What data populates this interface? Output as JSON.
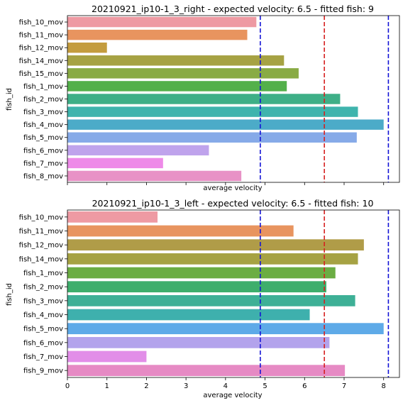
{
  "chart_data": [
    {
      "type": "bar",
      "orientation": "horizontal",
      "title": "20210921_ip10-1_3_right - expected velocity: 6.5 - fitted fish: 9",
      "xlabel": "average velocity",
      "ylabel": "fish_id",
      "xlim": [
        0,
        8.4
      ],
      "x_ticks": [
        0,
        1,
        2,
        3,
        4,
        5,
        6,
        7,
        8
      ],
      "show_x_tick_labels": false,
      "categories": [
        "fish_10_mov",
        "fish_11_mov",
        "fish_12_mov",
        "fish_14_mov",
        "fish_15_mov",
        "fish_1_mov",
        "fish_2_mov",
        "fish_3_mov",
        "fish_4_mov",
        "fish_5_mov",
        "fish_6_mov",
        "fish_7_mov",
        "fish_8_mov"
      ],
      "values": [
        4.78,
        4.55,
        1.0,
        5.48,
        5.85,
        5.55,
        6.9,
        7.35,
        8.0,
        7.32,
        3.58,
        2.42,
        4.4
      ],
      "colors": [
        "#ee9aa3",
        "#e8945f",
        "#c49c3e",
        "#a6a243",
        "#89ab44",
        "#53b04a",
        "#3eaf87",
        "#3eb4ad",
        "#4cabc8",
        "#86aae8",
        "#bfa3ec",
        "#ee8ae8",
        "#e892c6"
      ],
      "reference_lines": [
        {
          "x": 4.88,
          "color": "#1414d6",
          "style": "dashed"
        },
        {
          "x": 6.5,
          "color": "#d62020",
          "style": "dashed"
        },
        {
          "x": 8.12,
          "color": "#1414d6",
          "style": "dashed"
        }
      ]
    },
    {
      "type": "bar",
      "orientation": "horizontal",
      "title": "20210921_ip10-1_3_left - expected velocity: 6.5 - fitted fish: 10",
      "xlabel": "average velocity",
      "ylabel": "fish_id",
      "xlim": [
        0,
        8.4
      ],
      "x_ticks": [
        0,
        1,
        2,
        3,
        4,
        5,
        6,
        7,
        8
      ],
      "show_x_tick_labels": true,
      "categories": [
        "fish_10_mov",
        "fish_11_mov",
        "fish_12_mov",
        "fish_14_mov",
        "fish_1_mov",
        "fish_2_mov",
        "fish_3_mov",
        "fish_4_mov",
        "fish_5_mov",
        "fish_6_mov",
        "fish_7_mov",
        "fish_9_mov"
      ],
      "values": [
        2.28,
        5.72,
        7.5,
        7.35,
        6.78,
        6.55,
        7.28,
        6.13,
        8.0,
        6.63,
        2.0,
        7.02
      ],
      "colors": [
        "#ee9aa3",
        "#e8945f",
        "#b09c48",
        "#a6a243",
        "#6bad43",
        "#3eae6c",
        "#3eb096",
        "#3eb0ad",
        "#5eaae8",
        "#b3a3ec",
        "#e28ee8",
        "#e68ac4"
      ],
      "reference_lines": [
        {
          "x": 4.88,
          "color": "#1414d6",
          "style": "dashed"
        },
        {
          "x": 6.5,
          "color": "#d62020",
          "style": "dashed"
        },
        {
          "x": 8.12,
          "color": "#1414d6",
          "style": "dashed"
        }
      ]
    }
  ]
}
